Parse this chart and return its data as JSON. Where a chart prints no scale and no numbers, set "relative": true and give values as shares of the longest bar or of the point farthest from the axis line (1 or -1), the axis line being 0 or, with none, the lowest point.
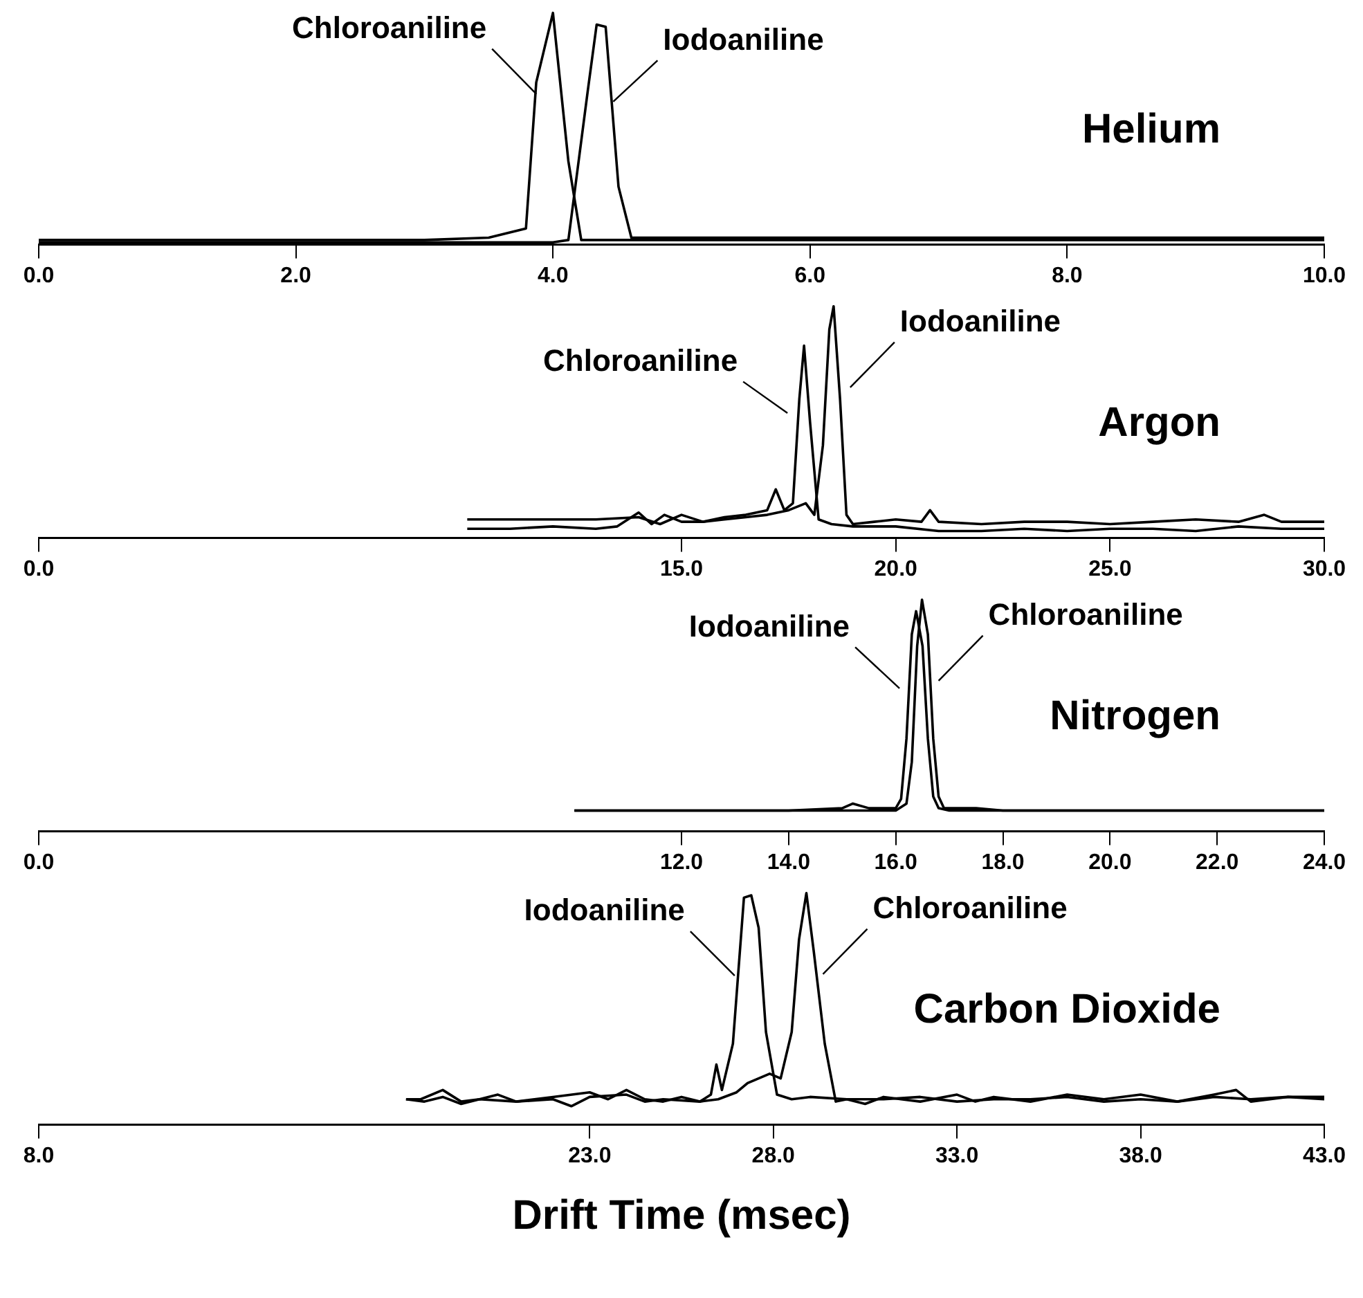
{
  "chart_data": [
    {
      "type": "line",
      "title": "Helium",
      "relative": true,
      "legend": false,
      "grid": false,
      "marker": "none",
      "line_style": "solid",
      "xlim": [
        0,
        10
      ],
      "xticks": [
        {
          "value": 0,
          "label": "0.0"
        },
        {
          "value": 2,
          "label": "2.0"
        },
        {
          "value": 4,
          "label": "4.0"
        },
        {
          "value": 6,
          "label": "6.0"
        },
        {
          "value": 8,
          "label": "8.0"
        },
        {
          "value": 10,
          "label": "10.0"
        }
      ],
      "tick_labels": "x",
      "series": [
        {
          "name": "Chloroaniline",
          "color": "#000000",
          "x": [
            0,
            1,
            2,
            3,
            3.5,
            3.79,
            3.87,
            4.0,
            4.12,
            4.22,
            4.3,
            5,
            6,
            7,
            8,
            9,
            10
          ],
          "values": [
            0.02,
            0.02,
            0.02,
            0.02,
            0.03,
            0.07,
            0.7,
            1,
            0.36,
            0.02,
            0.02,
            0.02,
            0.02,
            0.02,
            0.02,
            0.02,
            0.02
          ]
        },
        {
          "name": "Iodoaniline",
          "color": "#000000",
          "x": [
            0,
            1,
            2,
            3,
            4,
            4.12,
            4.27,
            4.34,
            4.41,
            4.51,
            4.61,
            5,
            6,
            7,
            8,
            9,
            10
          ],
          "values": [
            0.01,
            0.01,
            0.01,
            0.01,
            0.01,
            0.02,
            0.66,
            0.95,
            0.94,
            0.25,
            0.03,
            0.03,
            0.03,
            0.03,
            0.03,
            0.03,
            0.03
          ]
        }
      ]
    },
    {
      "type": "line",
      "title": "Argon",
      "relative": true,
      "legend": false,
      "grid": false,
      "marker": "none",
      "line_style": "solid",
      "xlim": [
        0,
        30
      ],
      "xticks": [
        {
          "value": 0,
          "label": "0.0"
        },
        {
          "value": 15,
          "label": "15.0"
        },
        {
          "value": 20,
          "label": "20.0"
        },
        {
          "value": 25,
          "label": "25.0"
        },
        {
          "value": 30,
          "label": "30.0"
        }
      ],
      "tick_labels": "x",
      "series": [
        {
          "name": "Chloroaniline",
          "color": "#000000",
          "x": [
            10,
            11,
            12,
            13,
            13.5,
            14,
            14.3,
            14.6,
            15,
            15.5,
            16,
            16.5,
            17,
            17.2,
            17.4,
            17.6,
            17.75,
            17.86,
            18.0,
            18.2,
            18.5,
            19,
            19.5,
            20,
            21,
            22,
            23,
            24,
            25,
            26,
            27,
            28,
            29,
            30
          ],
          "values": [
            0.04,
            0.04,
            0.05,
            0.04,
            0.05,
            0.11,
            0.06,
            0.1,
            0.07,
            0.07,
            0.09,
            0.1,
            0.12,
            0.21,
            0.12,
            0.15,
            0.6,
            0.83,
            0.5,
            0.08,
            0.06,
            0.05,
            0.05,
            0.05,
            0.03,
            0.03,
            0.04,
            0.03,
            0.04,
            0.04,
            0.03,
            0.05,
            0.04,
            0.04
          ]
        },
        {
          "name": "Iodoaniline",
          "color": "#000000",
          "x": [
            10,
            11,
            12,
            13,
            14,
            14.5,
            15,
            15.5,
            16,
            16.5,
            17,
            17.5,
            17.9,
            18.1,
            18.3,
            18.45,
            18.55,
            18.7,
            18.85,
            19,
            19.5,
            20,
            20.6,
            20.8,
            21,
            22,
            23,
            24,
            25,
            26,
            27,
            28,
            28.6,
            29,
            30
          ],
          "values": [
            0.08,
            0.08,
            0.08,
            0.08,
            0.09,
            0.06,
            0.1,
            0.07,
            0.08,
            0.09,
            0.1,
            0.12,
            0.15,
            0.1,
            0.4,
            0.9,
            1,
            0.6,
            0.1,
            0.06,
            0.07,
            0.08,
            0.07,
            0.12,
            0.07,
            0.06,
            0.07,
            0.07,
            0.06,
            0.07,
            0.08,
            0.07,
            0.1,
            0.07,
            0.07
          ]
        }
      ]
    },
    {
      "type": "line",
      "title": "Nitrogen",
      "relative": true,
      "legend": false,
      "grid": false,
      "marker": "none",
      "line_style": "solid",
      "xlim": [
        0,
        24
      ],
      "xticks": [
        {
          "value": 0,
          "label": "0.0"
        },
        {
          "value": 12,
          "label": "12.0"
        },
        {
          "value": 14,
          "label": "14.0"
        },
        {
          "value": 16,
          "label": "16.0"
        },
        {
          "value": 18,
          "label": "18.0"
        },
        {
          "value": 20,
          "label": "20.0"
        },
        {
          "value": 22,
          "label": "22.0"
        },
        {
          "value": 24,
          "label": "24.0"
        }
      ],
      "tick_labels": "x",
      "series": [
        {
          "name": "Iodoaniline",
          "color": "#000000",
          "x": [
            10,
            12,
            14,
            15,
            15.2,
            15.5,
            16,
            16.1,
            16.2,
            16.3,
            16.38,
            16.5,
            16.6,
            16.7,
            16.8,
            17,
            18,
            20,
            22,
            24
          ],
          "values": [
            0.09,
            0.09,
            0.09,
            0.1,
            0.12,
            0.1,
            0.1,
            0.14,
            0.4,
            0.85,
            0.95,
            0.8,
            0.4,
            0.15,
            0.1,
            0.09,
            0.09,
            0.09,
            0.09,
            0.09
          ]
        },
        {
          "name": "Chloroaniline",
          "color": "#000000",
          "x": [
            10,
            12,
            14,
            15,
            16,
            16.2,
            16.3,
            16.4,
            16.49,
            16.6,
            16.7,
            16.8,
            16.9,
            17,
            17.5,
            18,
            20,
            22,
            24
          ],
          "values": [
            0.09,
            0.09,
            0.09,
            0.09,
            0.09,
            0.12,
            0.3,
            0.8,
            1,
            0.85,
            0.4,
            0.15,
            0.1,
            0.1,
            0.1,
            0.09,
            0.09,
            0.09,
            0.09
          ]
        }
      ]
    },
    {
      "type": "line",
      "title": "Carbon Dioxide",
      "xlabel": "Drift Time (msec)",
      "relative": true,
      "legend": false,
      "grid": false,
      "marker": "none",
      "line_style": "solid",
      "xlim": [
        8,
        43
      ],
      "xticks": [
        {
          "value": 8,
          "label": "8.0"
        },
        {
          "value": 23,
          "label": "23.0"
        },
        {
          "value": 28,
          "label": "28.0"
        },
        {
          "value": 33,
          "label": "33.0"
        },
        {
          "value": 38,
          "label": "38.0"
        },
        {
          "value": 43,
          "label": "43.0"
        }
      ],
      "tick_labels": "x",
      "series": [
        {
          "name": "Iodoaniline",
          "color": "#000000",
          "x": [
            18,
            18.5,
            19,
            19.5,
            20,
            21,
            22,
            22.5,
            23,
            24,
            24.5,
            25,
            26,
            26.3,
            26.45,
            26.6,
            26.9,
            27.2,
            27.4,
            27.6,
            27.8,
            28.1,
            28.5,
            29,
            30,
            31,
            32,
            33,
            34,
            35,
            36,
            37,
            38,
            39,
            40,
            41,
            42,
            43
          ],
          "values": [
            0.11,
            0.1,
            0.12,
            0.09,
            0.11,
            0.1,
            0.11,
            0.08,
            0.12,
            0.13,
            0.1,
            0.11,
            0.1,
            0.13,
            0.26,
            0.15,
            0.35,
            0.98,
            0.99,
            0.85,
            0.4,
            0.13,
            0.11,
            0.12,
            0.11,
            0.11,
            0.12,
            0.1,
            0.11,
            0.11,
            0.12,
            0.1,
            0.11,
            0.1,
            0.12,
            0.11,
            0.12,
            0.11
          ]
        },
        {
          "name": "Chloroaniline",
          "color": "#000000",
          "x": [
            18,
            18.4,
            19,
            19.5,
            20,
            20.5,
            21,
            22,
            23,
            23.5,
            24,
            24.5,
            25,
            25.5,
            26,
            26.5,
            27,
            27.3,
            27.6,
            27.9,
            28.2,
            28.5,
            28.7,
            28.9,
            29.1,
            29.4,
            29.7,
            30,
            30.5,
            31,
            32,
            33,
            33.5,
            34,
            35,
            36,
            37,
            38,
            39,
            40,
            40.6,
            41,
            42,
            43
          ],
          "values": [
            0.11,
            0.11,
            0.15,
            0.1,
            0.11,
            0.13,
            0.1,
            0.12,
            0.14,
            0.11,
            0.15,
            0.11,
            0.1,
            0.12,
            0.1,
            0.11,
            0.14,
            0.18,
            0.2,
            0.22,
            0.2,
            0.4,
            0.8,
            1,
            0.75,
            0.35,
            0.1,
            0.11,
            0.09,
            0.12,
            0.1,
            0.13,
            0.1,
            0.12,
            0.1,
            0.13,
            0.11,
            0.13,
            0.1,
            0.13,
            0.15,
            0.1,
            0.12,
            0.12
          ]
        }
      ]
    }
  ]
}
